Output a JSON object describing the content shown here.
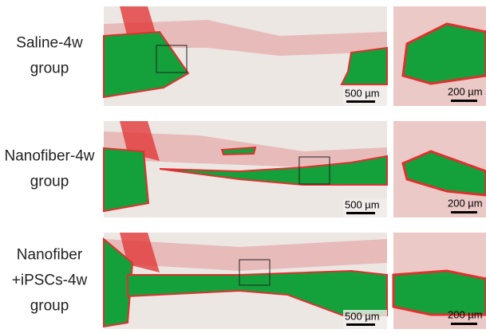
{
  "rows": [
    {
      "label": [
        "Saline-4w",
        "group"
      ],
      "scale_main": "500 µm",
      "scale_detail": "200 µm"
    },
    {
      "label": [
        "Nanofiber-4w",
        "group"
      ],
      "scale_main": "500 µm",
      "scale_detail": "200 µm"
    },
    {
      "label": [
        "Nanofiber",
        "+iPSCs-4w",
        "group"
      ],
      "scale_main": "500 µm",
      "scale_detail": "200 µm"
    }
  ]
}
